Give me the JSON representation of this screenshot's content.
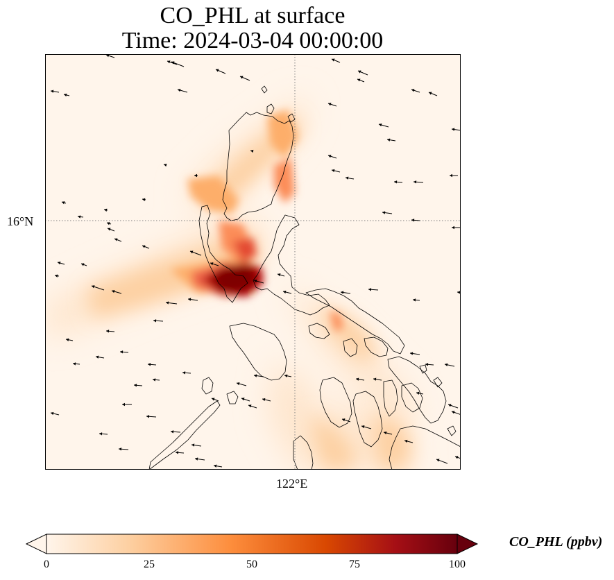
{
  "title_line1": "CO_PHL at surface",
  "title_line2": "Time: 2024-03-04 00:00:00",
  "axes": {
    "lat_tick_label": "16°N",
    "lon_tick_label": "122°E"
  },
  "colorbar": {
    "label": "CO_PHL (ppbv)",
    "ticks": [
      "0",
      "25",
      "50",
      "75",
      "100"
    ],
    "min": 0,
    "max": 100,
    "extend": "both",
    "colormap": [
      "#fff5eb",
      "#fdd0a2",
      "#fd8d3c",
      "#d94801",
      "#a50f15",
      "#67000d"
    ]
  },
  "colors": {
    "coastline": "#000000",
    "gridline": "#808080",
    "wind_vector": "#000000"
  }
}
